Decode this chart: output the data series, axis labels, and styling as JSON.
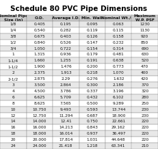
{
  "title": "Schedule 80 PVC Pipe Dimensions",
  "headers": [
    "Nominal Pipe\nSize (in)",
    "O.D.",
    "Average I.D.",
    "Min. Wall",
    "Nominal Wt./R.",
    "Maximum\nW.P. PSF"
  ],
  "rows": [
    [
      "1/8",
      "0.405",
      "0.195",
      "0.095",
      "0.063",
      "1230"
    ],
    [
      "1/4",
      "0.540",
      "0.282",
      "0.119",
      "0.115",
      "1130"
    ],
    [
      "3/8",
      "0.675",
      "0.403",
      "0.126",
      "0.158",
      "920"
    ],
    [
      "1/2",
      "0.840",
      "0.526",
      "0.147",
      "0.232",
      "850"
    ],
    [
      "3/4",
      "1.050",
      "0.722",
      "0.154",
      "0.314",
      "690"
    ],
    [
      "1",
      "1.315",
      "0.936",
      "0.179",
      "0.481",
      "630"
    ],
    [
      "1-1/4",
      "1.660",
      "1.255",
      "0.191",
      "0.638",
      "520"
    ],
    [
      "1-1/2",
      "1.900",
      "1.476",
      "0.200",
      "0.773",
      "470"
    ],
    [
      "2",
      "2.375",
      "1.913",
      "0.218",
      "1.070",
      "400"
    ],
    [
      "2-1/2",
      "2.875",
      "2.29",
      "0.276",
      "1.632",
      "420"
    ],
    [
      "3",
      "3.500",
      "2.864",
      "0.300",
      "2.186",
      "370"
    ],
    [
      "4",
      "4.500",
      "3.786",
      "0.337",
      "3.196",
      "320"
    ],
    [
      "6",
      "6.625",
      "5.709",
      "0.432",
      "6.102",
      "280"
    ],
    [
      "8",
      "8.625",
      "7.565",
      "0.500",
      "9.289",
      "250"
    ],
    [
      "10",
      "10.750",
      "9.493",
      "0.593",
      "13.744",
      "230"
    ],
    [
      "12",
      "12.750",
      "11.294",
      "0.687",
      "18.900",
      "230"
    ],
    [
      "14",
      "14.000",
      "12.41",
      "0.750",
      "22.661",
      "220"
    ],
    [
      "16",
      "16.000",
      "14.213",
      "0.843",
      "29.162",
      "220"
    ],
    [
      "18",
      "18.000",
      "16.014",
      "0.937",
      "36.497",
      "220"
    ],
    [
      "20",
      "20.000",
      "17.814",
      "1.031",
      "44.648",
      "220"
    ],
    [
      "24",
      "24.000",
      "21.418",
      "1.218",
      "63.341",
      "210"
    ]
  ],
  "header_bg": "#cccccc",
  "row_bg_odd": "#e8e8e8",
  "row_bg_even": "#ffffff",
  "header_fontsize": 4.2,
  "cell_fontsize": 4.2,
  "title_fontsize": 7.5,
  "border_color": "#888888",
  "text_color": "#111111"
}
